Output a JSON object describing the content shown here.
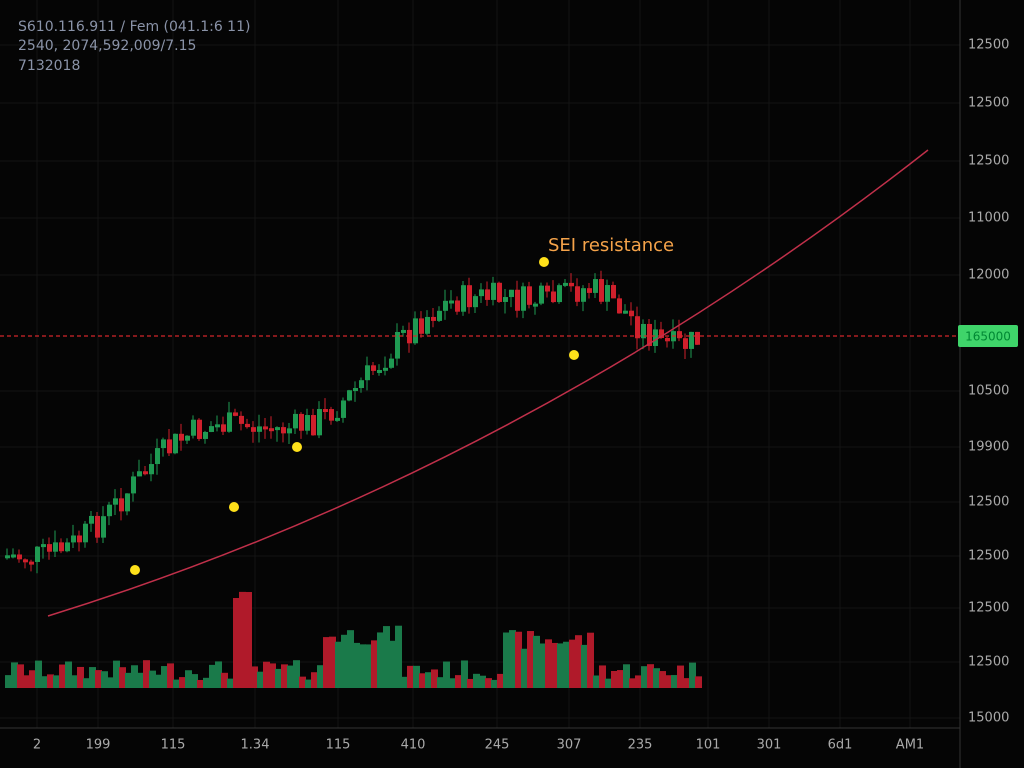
{
  "header": {
    "line1": "S610.116.911 / Fem (041.1:6 11)",
    "line2": "2540, 2074,592,009/7.15",
    "line3": "7132018"
  },
  "annotation": "SEI resistance",
  "price_tag": "165000",
  "price_axis": [
    "12500",
    "12500",
    "12500",
    "11000",
    "12000",
    "10500",
    "19900",
    "12500",
    "12500",
    "12500",
    "12500",
    "15000"
  ],
  "time_axis": [
    "2",
    "199",
    "115",
    "1.34",
    "115",
    "410",
    "245",
    "307",
    "235",
    "101",
    "301",
    "6d1",
    "AM1"
  ]
}
